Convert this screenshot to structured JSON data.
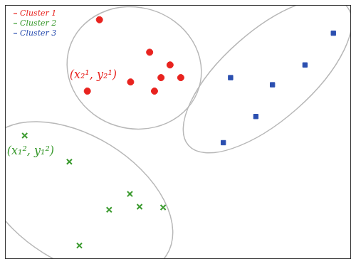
{
  "chart_data": {
    "type": "scatter",
    "series": [
      {
        "name": "Cluster 1",
        "color": "#e8231f",
        "marker": "circle",
        "x": [
          27.3,
          41.8,
          47.7,
          45.1,
          50.8,
          36.3,
          43.2,
          23.8
        ],
        "values": [
          94.2,
          81.4,
          76.4,
          71.4,
          71.4,
          69.7,
          66.1,
          66.1
        ]
      },
      {
        "name": "Cluster 2",
        "color": "#3a9a2e",
        "marker": "cross",
        "x": [
          5.7,
          18.6,
          36.1,
          30.1,
          38.9,
          45.7,
          21.5
        ],
        "values": [
          48.6,
          38.3,
          25.6,
          19.4,
          20.6,
          20.3,
          5.3
        ]
      },
      {
        "name": "Cluster 3",
        "color": "#2b4fb0",
        "marker": "square",
        "x": [
          94.9,
          65.2,
          86.7,
          77.3,
          72.5,
          63.1
        ],
        "values": [
          88.9,
          71.4,
          76.4,
          68.6,
          56.1,
          45.8
        ]
      }
    ],
    "annotations": [
      {
        "text": "(x₂¹, y₂¹)",
        "x": 23.8,
        "y": 66.1,
        "color": "#e8231f"
      },
      {
        "text": "(x₁², y₁²)",
        "x": 5.7,
        "y": 48.6,
        "color": "#3a9a2e"
      }
    ],
    "xlim": [
      0,
      100
    ],
    "ylim": [
      0,
      100
    ],
    "tick_labels": false,
    "grid": false,
    "legend": "upper left"
  }
}
